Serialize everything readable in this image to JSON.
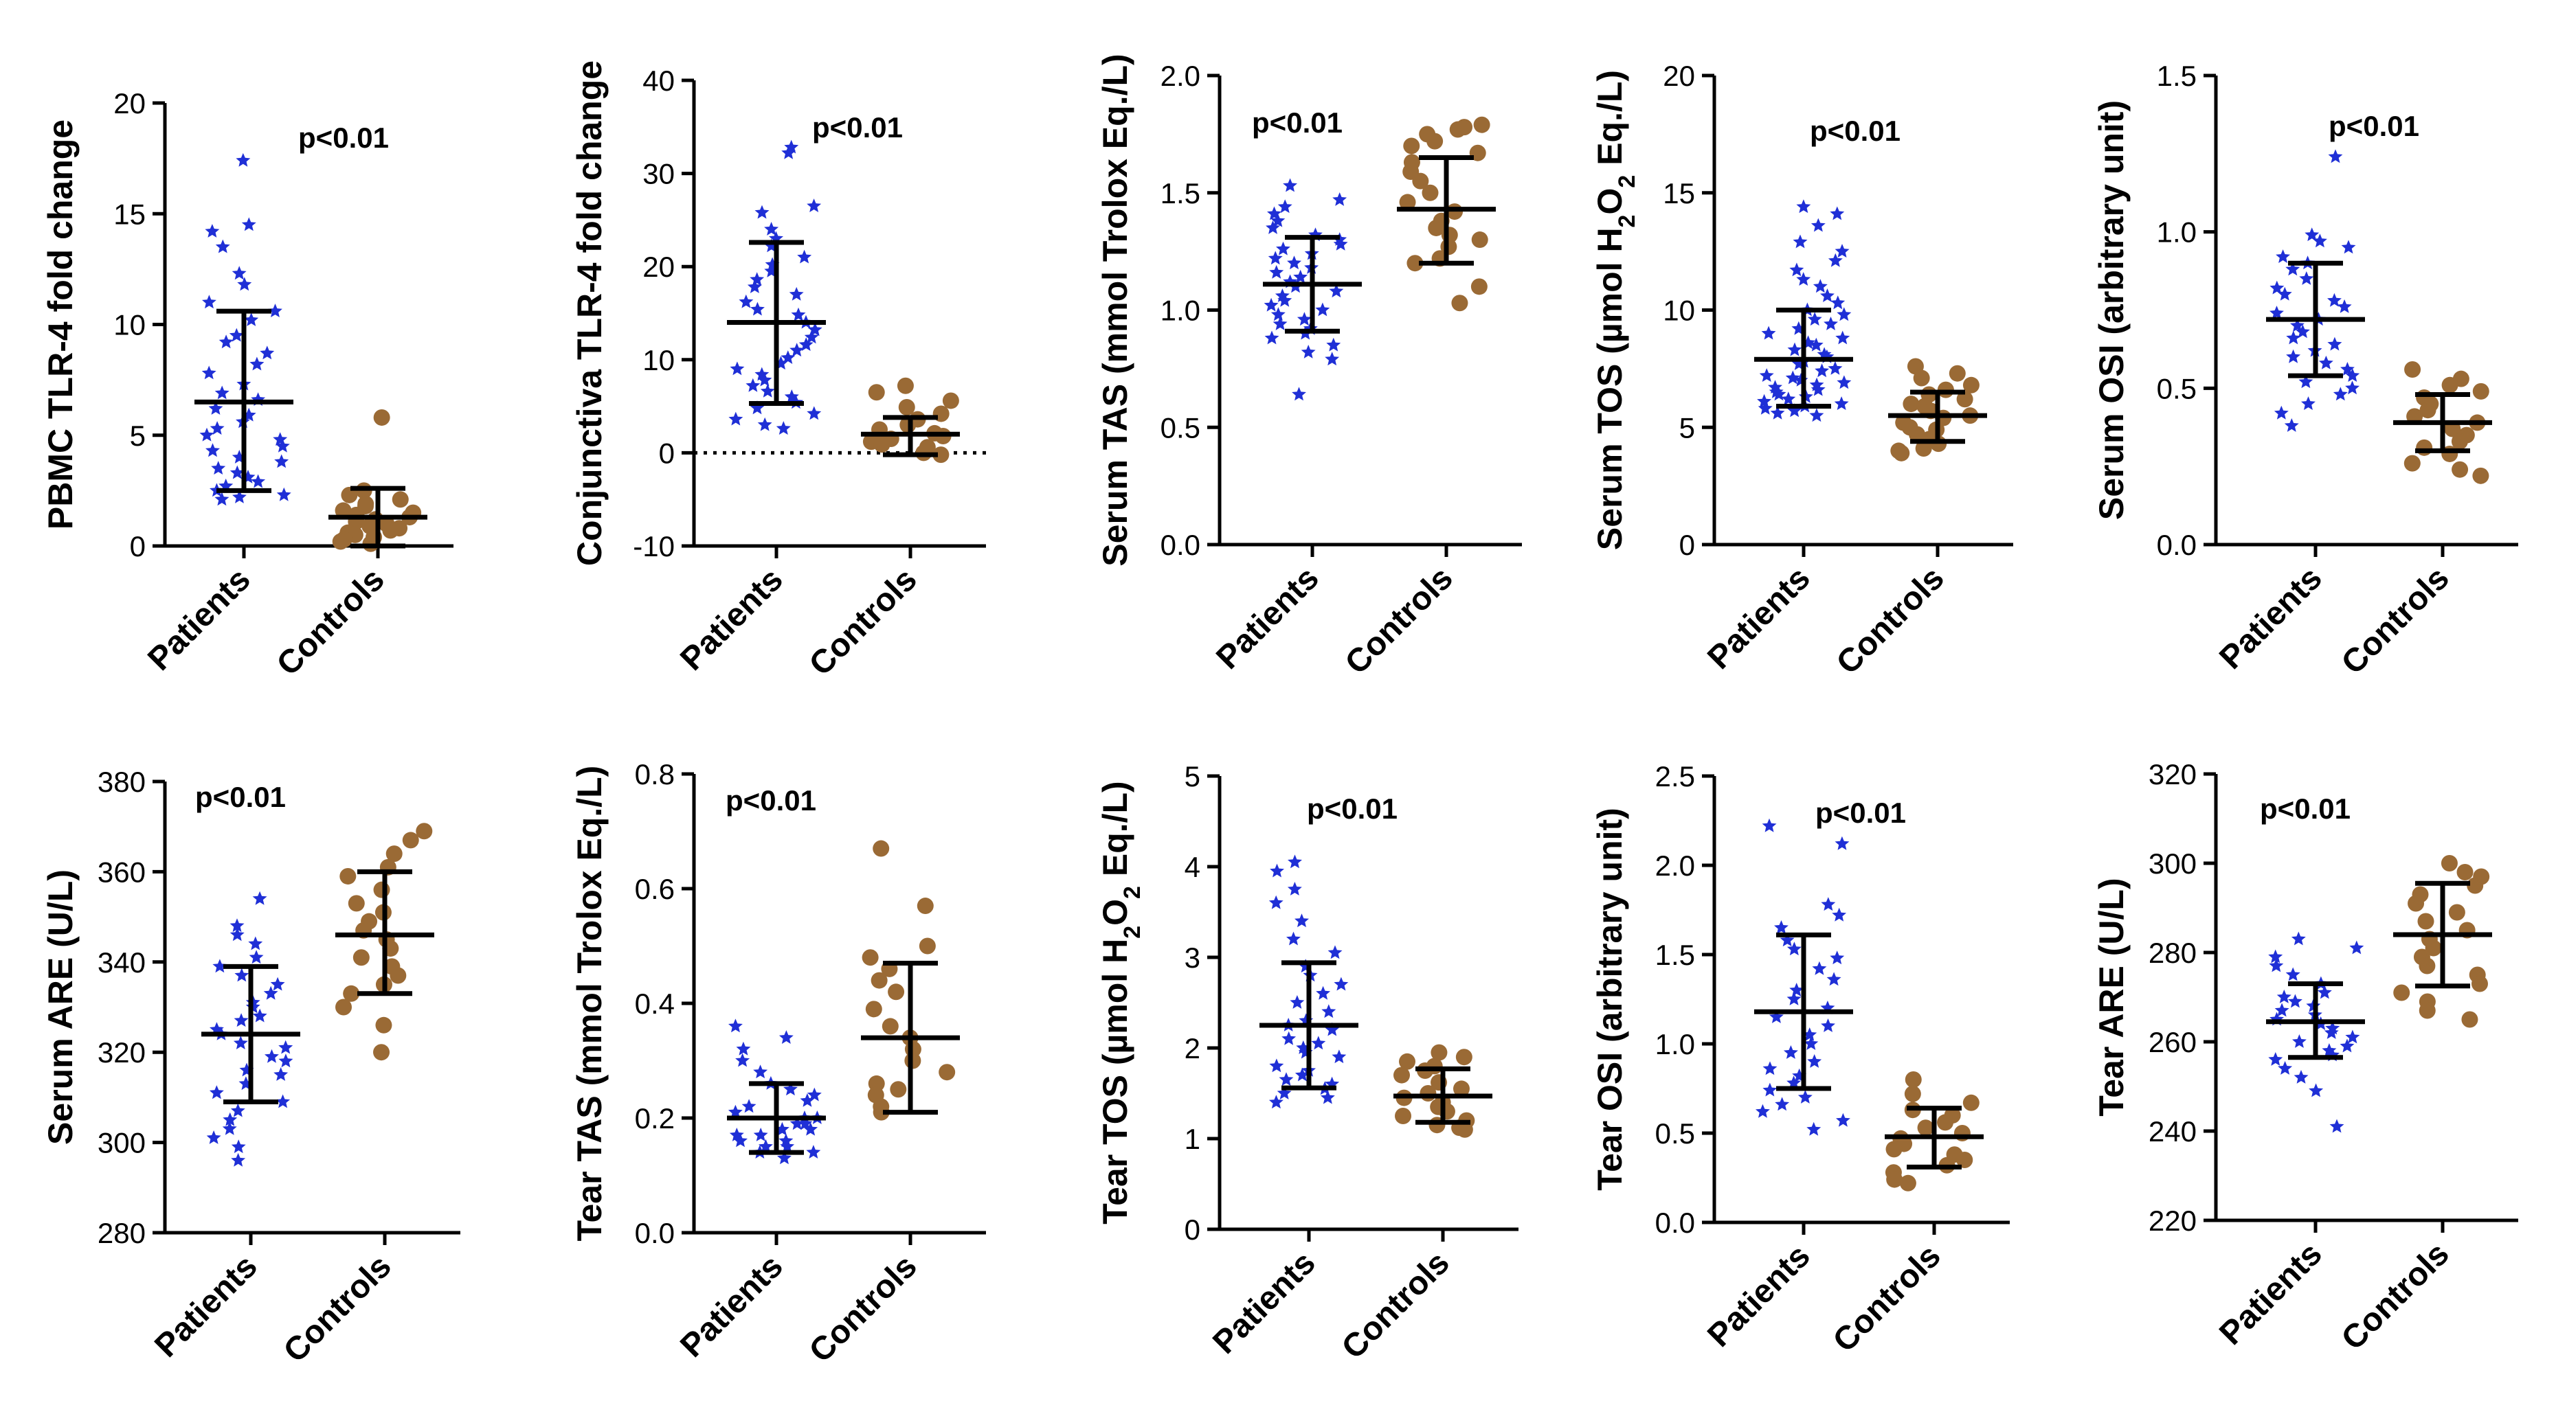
{
  "figure": {
    "description_free": true,
    "group_colors": {
      "Patients": "#1f2fd6",
      "Controls": "#9a6a35"
    },
    "group_markers": {
      "Patients": "star-icon",
      "Controls": "circle-icon"
    }
  },
  "chart_data": [
    {
      "type": "scatter",
      "ylabel": "PBMC TLR-4 fold change",
      "ylim": [
        0,
        20
      ],
      "yticks": [
        "0",
        "5",
        "10",
        "15",
        "20"
      ],
      "ytick_values": [
        0,
        5,
        10,
        15,
        20
      ],
      "categories": [
        "Patients",
        "Controls"
      ],
      "annotation": "p<0.01",
      "series": [
        {
          "name": "Patients",
          "mean": 6.5,
          "sd_low": 2.5,
          "sd_high": 10.6,
          "values": [
            17.4,
            14.5,
            14.2,
            13.5,
            12.3,
            11.8,
            11.0,
            10.6,
            10.2,
            9.5,
            9.2,
            8.7,
            8.2,
            7.8,
            7.3,
            6.9,
            6.6,
            6.2,
            5.9,
            5.6,
            5.3,
            5.0,
            4.8,
            4.5,
            4.3,
            4.0,
            3.8,
            3.5,
            3.3,
            3.1,
            2.9,
            2.7,
            2.5,
            2.3,
            2.2,
            2.1
          ]
        },
        {
          "name": "Controls",
          "mean": 1.3,
          "sd_low": 0.0,
          "sd_high": 2.6,
          "values": [
            5.8,
            2.5,
            2.3,
            2.1,
            1.9,
            1.8,
            1.6,
            1.5,
            1.4,
            1.3,
            1.2,
            1.1,
            1.0,
            0.9,
            0.8,
            0.7,
            0.6,
            0.5,
            0.4,
            0.3,
            0.2,
            0.1
          ]
        }
      ]
    },
    {
      "type": "scatter",
      "ylabel": "Conjunctiva TLR-4 fold change",
      "ylim": [
        -10,
        40
      ],
      "yticks": [
        "-10",
        "0",
        "10",
        "20",
        "30",
        "40"
      ],
      "ytick_values": [
        -10,
        0,
        10,
        20,
        30,
        40
      ],
      "zero_line": true,
      "categories": [
        "Patients",
        "Controls"
      ],
      "annotation": "p<0.01",
      "series": [
        {
          "name": "Patients",
          "mean": 14.0,
          "sd_low": 5.3,
          "sd_high": 22.6,
          "values": [
            32.8,
            32.2,
            26.5,
            25.8,
            24.0,
            23.0,
            22.2,
            21.0,
            20.2,
            19.5,
            18.6,
            17.8,
            17.0,
            16.2,
            15.4,
            14.8,
            14.0,
            13.2,
            12.4,
            11.6,
            11.0,
            10.2,
            9.6,
            9.0,
            8.4,
            7.8,
            7.2,
            6.6,
            6.0,
            5.4,
            4.8,
            4.2,
            3.6,
            3.0,
            2.6
          ]
        },
        {
          "name": "Controls",
          "mean": 2.0,
          "sd_low": -0.2,
          "sd_high": 3.8,
          "values": [
            7.2,
            6.5,
            5.6,
            4.9,
            4.2,
            3.6,
            3.0,
            2.5,
            2.1,
            1.8,
            1.5,
            1.2,
            0.9,
            0.6,
            0.3,
            0.0,
            -0.2
          ]
        }
      ]
    },
    {
      "type": "scatter",
      "ylabel_parts": [
        "Serum TAS (mmol Trolox Eq./L)"
      ],
      "ylim": [
        0,
        2
      ],
      "yticks": [
        "0.0",
        "0.5",
        "1.0",
        "1.5",
        "2.0"
      ],
      "ytick_values": [
        0,
        0.5,
        1.0,
        1.5,
        2.0
      ],
      "categories": [
        "Patients",
        "Controls"
      ],
      "annotation": "p<0.01",
      "series": [
        {
          "name": "Patients",
          "mean": 1.11,
          "sd_low": 0.91,
          "sd_high": 1.31,
          "values": [
            1.53,
            1.47,
            1.44,
            1.41,
            1.38,
            1.35,
            1.32,
            1.3,
            1.28,
            1.26,
            1.24,
            1.22,
            1.2,
            1.18,
            1.16,
            1.14,
            1.12,
            1.1,
            1.08,
            1.06,
            1.04,
            1.02,
            1.0,
            0.98,
            0.96,
            0.94,
            0.92,
            0.9,
            0.88,
            0.85,
            0.82,
            0.79,
            0.64
          ]
        },
        {
          "name": "Controls",
          "mean": 1.43,
          "sd_low": 1.2,
          "sd_high": 1.65,
          "values": [
            1.79,
            1.78,
            1.77,
            1.75,
            1.72,
            1.7,
            1.67,
            1.63,
            1.59,
            1.55,
            1.5,
            1.46,
            1.42,
            1.38,
            1.35,
            1.32,
            1.3,
            1.27,
            1.22,
            1.2,
            1.1,
            1.03
          ]
        }
      ]
    },
    {
      "type": "scatter",
      "ylabel_parts": [
        "Serum TOS (µmol H",
        "2",
        "O",
        "2",
        " Eq./L)"
      ],
      "ylim": [
        0,
        20
      ],
      "yticks": [
        "0",
        "5",
        "10",
        "15",
        "20"
      ],
      "ytick_values": [
        0,
        5,
        10,
        15,
        20
      ],
      "categories": [
        "Patients",
        "Controls"
      ],
      "annotation": "p<0.01",
      "series": [
        {
          "name": "Patients",
          "mean": 7.9,
          "sd_low": 5.9,
          "sd_high": 10.0,
          "values": [
            14.4,
            14.1,
            13.6,
            12.9,
            12.5,
            12.1,
            11.7,
            11.3,
            11.0,
            10.6,
            10.3,
            10.0,
            9.8,
            9.6,
            9.4,
            9.2,
            9.0,
            8.8,
            8.6,
            8.5,
            8.3,
            8.1,
            8.0,
            7.8,
            7.7,
            7.5,
            7.4,
            7.2,
            7.1,
            7.0,
            6.9,
            6.8,
            6.7,
            6.6,
            6.5,
            6.4,
            6.3,
            6.2,
            6.1,
            6.0,
            5.9,
            5.8,
            5.7,
            5.6,
            5.5
          ]
        },
        {
          "name": "Controls",
          "mean": 5.5,
          "sd_low": 4.4,
          "sd_high": 6.5,
          "values": [
            7.6,
            7.3,
            7.1,
            6.8,
            6.6,
            6.4,
            6.2,
            6.0,
            5.9,
            5.7,
            5.5,
            5.4,
            5.2,
            5.0,
            4.9,
            4.7,
            4.5,
            4.3,
            4.1,
            4.0,
            3.9
          ]
        }
      ]
    },
    {
      "type": "scatter",
      "ylabel": "Serum OSI (arbitrary unit)",
      "ylim": [
        0,
        1.5
      ],
      "yticks": [
        "0.0",
        "0.5",
        "1.0",
        "1.5"
      ],
      "ytick_values": [
        0,
        0.5,
        1.0,
        1.5
      ],
      "categories": [
        "Patients",
        "Controls"
      ],
      "annotation": "p<0.01",
      "series": [
        {
          "name": "Patients",
          "mean": 0.72,
          "sd_low": 0.54,
          "sd_high": 0.9,
          "values": [
            1.24,
            0.99,
            0.97,
            0.95,
            0.92,
            0.9,
            0.88,
            0.85,
            0.82,
            0.8,
            0.78,
            0.76,
            0.74,
            0.72,
            0.7,
            0.68,
            0.66,
            0.64,
            0.62,
            0.6,
            0.58,
            0.56,
            0.54,
            0.52,
            0.5,
            0.48,
            0.45,
            0.42,
            0.38
          ]
        },
        {
          "name": "Controls",
          "mean": 0.39,
          "sd_low": 0.3,
          "sd_high": 0.48,
          "values": [
            0.56,
            0.53,
            0.51,
            0.49,
            0.47,
            0.45,
            0.43,
            0.41,
            0.39,
            0.37,
            0.35,
            0.33,
            0.31,
            0.29,
            0.26,
            0.24,
            0.22
          ]
        }
      ]
    },
    {
      "type": "scatter",
      "ylabel": "Serum ARE (U/L)",
      "ylim": [
        280,
        380
      ],
      "yticks": [
        "280",
        "300",
        "320",
        "340",
        "360",
        "380"
      ],
      "ytick_values": [
        280,
        300,
        320,
        340,
        360,
        380
      ],
      "categories": [
        "Patients",
        "Controls"
      ],
      "annotation": "p<0.01",
      "series": [
        {
          "name": "Patients",
          "mean": 324,
          "sd_low": 309,
          "sd_high": 339,
          "values": [
            354,
            348,
            346,
            344,
            341,
            339,
            337,
            335,
            333,
            331,
            330,
            328,
            327,
            325,
            324,
            322,
            321,
            319,
            318,
            316,
            315,
            313,
            311,
            309,
            307,
            305,
            303,
            301,
            299,
            296
          ]
        },
        {
          "name": "Controls",
          "mean": 346,
          "sd_low": 333,
          "sd_high": 360,
          "values": [
            369,
            367,
            364,
            361,
            359,
            356,
            353,
            351,
            349,
            347,
            345,
            343,
            341,
            339,
            337,
            335,
            333,
            330,
            326,
            320
          ]
        }
      ]
    },
    {
      "type": "scatter",
      "ylabel": "Tear TAS (mmol Trolox Eq./L)",
      "ylim": [
        0,
        0.8
      ],
      "yticks": [
        "0.0",
        "0.2",
        "0.4",
        "0.6",
        "0.8"
      ],
      "ytick_values": [
        0,
        0.2,
        0.4,
        0.6,
        0.8
      ],
      "categories": [
        "Patients",
        "Controls"
      ],
      "annotation": "p<0.01",
      "series": [
        {
          "name": "Patients",
          "mean": 0.2,
          "sd_low": 0.14,
          "sd_high": 0.26,
          "values": [
            0.36,
            0.34,
            0.32,
            0.3,
            0.28,
            0.26,
            0.25,
            0.24,
            0.23,
            0.22,
            0.21,
            0.2,
            0.2,
            0.19,
            0.19,
            0.18,
            0.18,
            0.17,
            0.17,
            0.16,
            0.16,
            0.15,
            0.15,
            0.14,
            0.14,
            0.13
          ]
        },
        {
          "name": "Controls",
          "mean": 0.34,
          "sd_low": 0.21,
          "sd_high": 0.47,
          "values": [
            0.67,
            0.57,
            0.5,
            0.48,
            0.46,
            0.44,
            0.42,
            0.39,
            0.36,
            0.34,
            0.32,
            0.3,
            0.28,
            0.26,
            0.25,
            0.24,
            0.22,
            0.21
          ]
        }
      ]
    },
    {
      "type": "scatter",
      "ylabel_parts": [
        "Tear TOS (µmol H",
        "2",
        "O",
        "2",
        " Eq./L)"
      ],
      "ylim": [
        0,
        5
      ],
      "yticks": [
        "0",
        "1",
        "2",
        "3",
        "4",
        "5"
      ],
      "ytick_values": [
        0,
        1,
        2,
        3,
        4,
        5
      ],
      "categories": [
        "Patients",
        "Controls"
      ],
      "annotation": "p<0.01",
      "series": [
        {
          "name": "Patients",
          "mean": 2.25,
          "sd_low": 1.56,
          "sd_high": 2.94,
          "values": [
            4.05,
            3.95,
            3.75,
            3.6,
            3.4,
            3.2,
            3.05,
            2.9,
            2.8,
            2.7,
            2.6,
            2.5,
            2.4,
            2.3,
            2.25,
            2.2,
            2.1,
            2.05,
            2.0,
            1.95,
            1.9,
            1.8,
            1.75,
            1.7,
            1.65,
            1.6,
            1.55,
            1.5,
            1.45,
            1.4
          ]
        },
        {
          "name": "Controls",
          "mean": 1.47,
          "sd_low": 1.18,
          "sd_high": 1.77,
          "values": [
            1.95,
            1.9,
            1.85,
            1.8,
            1.75,
            1.7,
            1.62,
            1.55,
            1.5,
            1.45,
            1.4,
            1.35,
            1.3,
            1.25,
            1.2,
            1.15,
            1.12,
            1.1
          ]
        }
      ]
    },
    {
      "type": "scatter",
      "ylabel": "Tear OSI (arbitrary unit)",
      "ylim": [
        0,
        2.5
      ],
      "yticks": [
        "0.0",
        "0.5",
        "1.0",
        "1.5",
        "2.0",
        "2.5"
      ],
      "ytick_values": [
        0,
        0.5,
        1.0,
        1.5,
        2.0,
        2.5
      ],
      "categories": [
        "Patients",
        "Controls"
      ],
      "annotation": "p<0.01",
      "series": [
        {
          "name": "Patients",
          "mean": 1.18,
          "sd_low": 0.75,
          "sd_high": 1.61,
          "values": [
            2.22,
            2.12,
            1.78,
            1.72,
            1.65,
            1.58,
            1.53,
            1.48,
            1.42,
            1.36,
            1.3,
            1.25,
            1.2,
            1.15,
            1.1,
            1.05,
            1.0,
            0.95,
            0.9,
            0.86,
            0.82,
            0.78,
            0.74,
            0.7,
            0.66,
            0.62,
            0.57,
            0.52
          ]
        },
        {
          "name": "Controls",
          "mean": 0.48,
          "sd_low": 0.31,
          "sd_high": 0.64,
          "values": [
            0.8,
            0.72,
            0.67,
            0.63,
            0.6,
            0.56,
            0.53,
            0.5,
            0.47,
            0.44,
            0.41,
            0.38,
            0.35,
            0.32,
            0.28,
            0.24,
            0.22
          ]
        }
      ]
    },
    {
      "type": "scatter",
      "ylabel": "Tear ARE (U/L)",
      "ylim": [
        220,
        320
      ],
      "yticks": [
        "220",
        "240",
        "260",
        "280",
        "300",
        "320"
      ],
      "ytick_values": [
        220,
        240,
        260,
        280,
        300,
        320
      ],
      "categories": [
        "Patients",
        "Controls"
      ],
      "annotation": "p<0.01",
      "series": [
        {
          "name": "Patients",
          "mean": 264.5,
          "sd_low": 256.5,
          "sd_high": 273,
          "values": [
            283,
            281,
            279,
            277,
            275,
            273,
            271,
            270,
            269,
            268,
            267,
            266,
            265,
            264,
            263,
            262,
            261,
            260,
            259,
            258,
            257,
            256,
            254,
            252,
            249,
            241
          ]
        },
        {
          "name": "Controls",
          "mean": 284,
          "sd_low": 272.5,
          "sd_high": 295.5,
          "values": [
            300,
            298,
            297,
            295,
            293,
            291,
            289,
            287,
            285,
            283,
            281,
            279,
            277,
            275,
            273,
            271,
            269,
            267,
            265
          ]
        }
      ]
    }
  ]
}
